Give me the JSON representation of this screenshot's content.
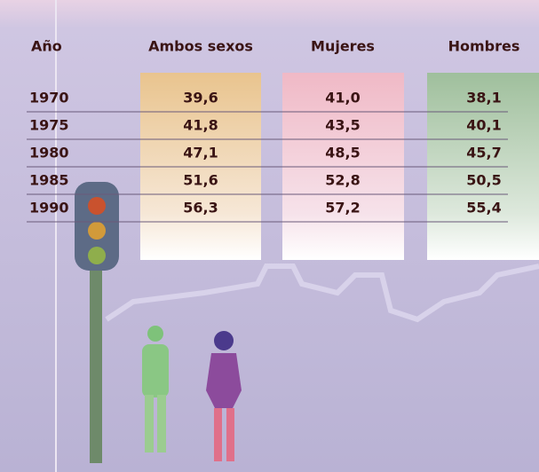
{
  "table": {
    "headers": [
      "Año",
      "Ambos sexos",
      "Mujeres",
      "Hombres"
    ],
    "rows": [
      [
        "1970",
        "39,6",
        "41,0",
        "38,1"
      ],
      [
        "1975",
        "41,8",
        "43,5",
        "40,1"
      ],
      [
        "1980",
        "47,1",
        "48,5",
        "45,7"
      ],
      [
        "1985",
        "51,6",
        "52,8",
        "50,5"
      ],
      [
        "1990",
        "56,3",
        "57,2",
        "55,4"
      ]
    ]
  }
}
